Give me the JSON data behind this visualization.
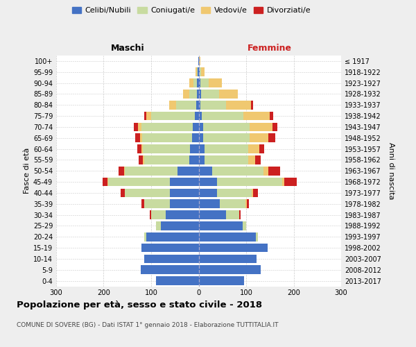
{
  "age_groups": [
    "0-4",
    "5-9",
    "10-14",
    "15-19",
    "20-24",
    "25-29",
    "30-34",
    "35-39",
    "40-44",
    "45-49",
    "50-54",
    "55-59",
    "60-64",
    "65-69",
    "70-74",
    "75-79",
    "80-84",
    "85-89",
    "90-94",
    "95-99",
    "100+"
  ],
  "birth_years": [
    "2013-2017",
    "2008-2012",
    "2003-2007",
    "1998-2002",
    "1993-1997",
    "1988-1992",
    "1983-1987",
    "1978-1982",
    "1973-1977",
    "1968-1972",
    "1963-1967",
    "1958-1962",
    "1953-1957",
    "1948-1952",
    "1943-1947",
    "1938-1942",
    "1933-1937",
    "1928-1932",
    "1923-1927",
    "1918-1922",
    "≤ 1917"
  ],
  "colors": {
    "celibe": "#4472c4",
    "coniugato": "#c8dba0",
    "vedovo": "#f0c870",
    "divorziato": "#cc2020"
  },
  "maschi": {
    "celibe": [
      90,
      122,
      115,
      120,
      110,
      80,
      70,
      60,
      60,
      60,
      45,
      20,
      18,
      14,
      12,
      8,
      5,
      4,
      3,
      2,
      1
    ],
    "coniugato": [
      0,
      0,
      0,
      0,
      5,
      10,
      30,
      55,
      95,
      130,
      110,
      95,
      100,
      105,
      108,
      92,
      42,
      15,
      8,
      2,
      0
    ],
    "vedovo": [
      0,
      0,
      0,
      0,
      0,
      0,
      0,
      0,
      1,
      2,
      2,
      2,
      3,
      5,
      8,
      10,
      15,
      14,
      8,
      2,
      0
    ],
    "divorziato": [
      0,
      0,
      0,
      0,
      0,
      0,
      3,
      5,
      8,
      10,
      12,
      10,
      8,
      10,
      8,
      5,
      0,
      0,
      0,
      0,
      0
    ]
  },
  "femmine": {
    "celibe": [
      96,
      130,
      122,
      145,
      120,
      92,
      58,
      45,
      38,
      38,
      28,
      12,
      12,
      10,
      10,
      6,
      4,
      5,
      3,
      2,
      1
    ],
    "coniugato": [
      0,
      0,
      0,
      0,
      5,
      8,
      28,
      54,
      74,
      138,
      108,
      92,
      92,
      98,
      98,
      88,
      54,
      38,
      18,
      3,
      0
    ],
    "vedovo": [
      0,
      0,
      0,
      0,
      0,
      0,
      0,
      2,
      3,
      5,
      10,
      15,
      24,
      38,
      48,
      55,
      52,
      40,
      28,
      8,
      2
    ],
    "divorziato": [
      0,
      0,
      0,
      0,
      0,
      0,
      3,
      5,
      10,
      25,
      25,
      12,
      10,
      15,
      10,
      8,
      5,
      0,
      0,
      0,
      0
    ]
  },
  "title": "Popolazione per età, sesso e stato civile - 2018",
  "subtitle": "COMUNE DI SOVERE (BG) - Dati ISTAT 1° gennaio 2018 - Elaborazione TUTTITALIA.IT",
  "ylabel_left": "Fasce di età",
  "ylabel_right": "Anni di nascita",
  "xlabel_maschi": "Maschi",
  "xlabel_femmine": "Femmine",
  "xlim": 300,
  "legend_labels": [
    "Celibi/Nubili",
    "Coniugati/e",
    "Vedovi/e",
    "Divorziati/e"
  ],
  "bg_color": "#eeeeee",
  "plot_bg_color": "#ffffff",
  "grid_color": "#cccccc"
}
